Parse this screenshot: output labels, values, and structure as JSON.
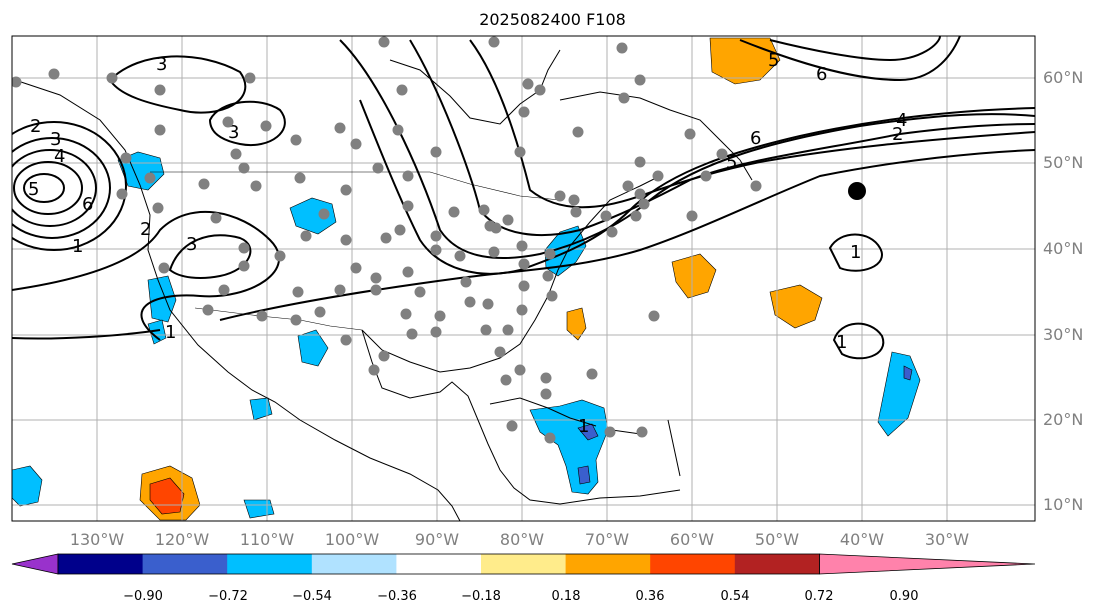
{
  "title": "2025082400 F108",
  "longitude_labels": [
    "130°W",
    "120°W",
    "110°W",
    "100°W",
    "90°W",
    "80°W",
    "70°W",
    "60°W",
    "50°W",
    "40°W",
    "30°W"
  ],
  "latitude_labels": [
    "60°N",
    "50°N",
    "40°N",
    "30°N",
    "20°N",
    "10°N"
  ],
  "contour_labels": [
    "3",
    "2",
    "3",
    "4",
    "5",
    "6",
    "1",
    "3",
    "2",
    "3",
    "1",
    "5",
    "6",
    "1",
    "4",
    "2",
    "6",
    "5",
    "1",
    "1"
  ],
  "colorbar": {
    "ticks": [
      "−0.90",
      "−0.72",
      "−0.54",
      "−0.36",
      "−0.18",
      "0.18",
      "0.36",
      "0.54",
      "0.72",
      "0.90"
    ],
    "colors": [
      "#9932cc",
      "#00008b",
      "#3a5fcd",
      "#00bfff",
      "#b0e2ff",
      "#ffffff",
      "#ffec8b",
      "#ffa500",
      "#ff4500",
      "#b22222",
      "#ff82ab"
    ]
  },
  "colors": {
    "station": "#808080",
    "marker": "#000000",
    "grid": "#b0b0b0"
  }
}
